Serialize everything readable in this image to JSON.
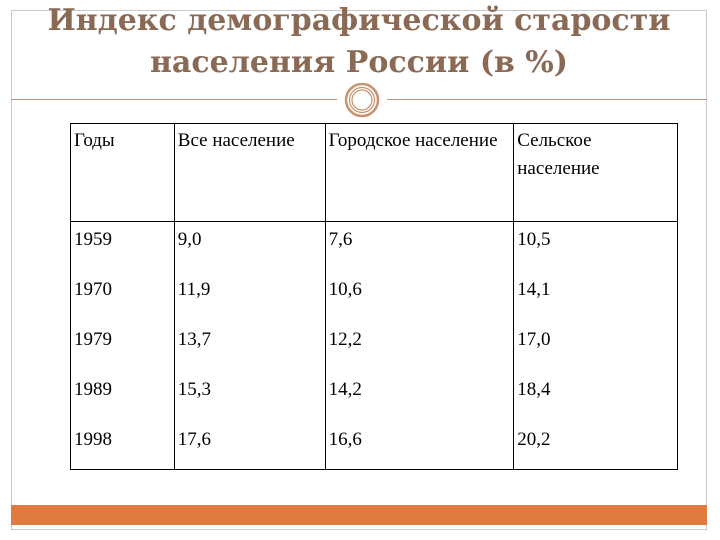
{
  "slide": {
    "title_line1": "Индекс демографической старости",
    "title_line2": "населения России (в %)",
    "accent_color": "#e07a3f",
    "title_color": "#8a6a55"
  },
  "table": {
    "headers": [
      "Годы",
      "Все население",
      "Городское население",
      "Сельское население"
    ],
    "rows": [
      [
        "1959",
        "9,0",
        "7,6",
        "10,5"
      ],
      [
        "1970",
        "11,9",
        "10,6",
        "14,1"
      ],
      [
        "1979",
        "13,7",
        "12,2",
        "17,0"
      ],
      [
        "1989",
        "15,3",
        "14,2",
        "18,4"
      ],
      [
        "1998",
        "17,6",
        "16,6",
        "20,2"
      ]
    ]
  }
}
